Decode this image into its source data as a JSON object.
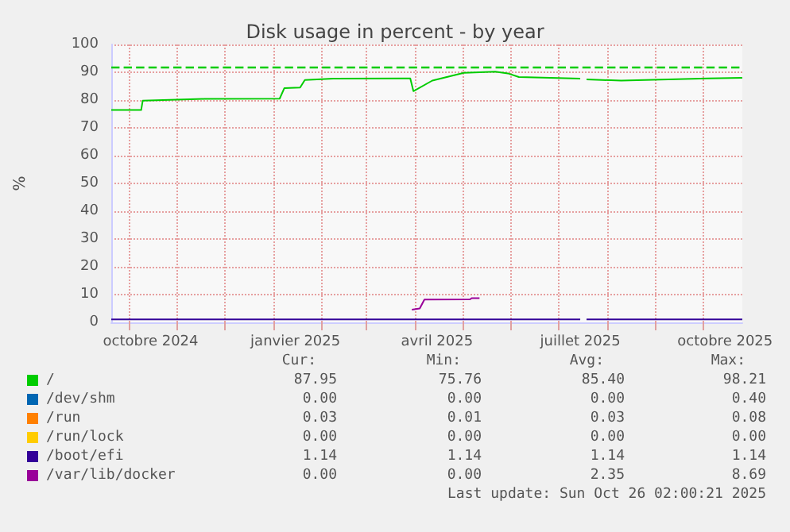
{
  "chart_data": {
    "type": "line",
    "title": "Disk usage in percent - by year",
    "ylabel": "%",
    "xlim": [
      "2024-09-20",
      "2025-10-26"
    ],
    "xticks": [
      {
        "value": "2024-10-01",
        "label": null
      },
      {
        "value": "2024-10-15",
        "label": "octobre 2024"
      },
      {
        "value": "2024-11-01",
        "label": null
      },
      {
        "value": "2024-12-01",
        "label": null
      },
      {
        "value": "2025-01-01",
        "label": null
      },
      {
        "value": "2025-01-15",
        "label": "janvier 2025"
      },
      {
        "value": "2025-02-01",
        "label": null
      },
      {
        "value": "2025-03-01",
        "label": null
      },
      {
        "value": "2025-04-01",
        "label": null
      },
      {
        "value": "2025-04-15",
        "label": "avril 2025"
      },
      {
        "value": "2025-05-01",
        "label": null
      },
      {
        "value": "2025-06-01",
        "label": null
      },
      {
        "value": "2025-07-01",
        "label": null
      },
      {
        "value": "2025-07-15",
        "label": "juillet 2025"
      },
      {
        "value": "2025-08-01",
        "label": null
      },
      {
        "value": "2025-09-01",
        "label": null
      },
      {
        "value": "2025-10-01",
        "label": null
      },
      {
        "value": "2025-10-15",
        "label": "octobre 2025"
      }
    ],
    "ylim": [
      0,
      100
    ],
    "yticks": [
      0,
      10,
      20,
      30,
      40,
      50,
      60,
      70,
      80,
      90,
      100
    ],
    "grid": true,
    "legend": "bottom",
    "marker": "none",
    "line_style": "solid",
    "ref_lines": [
      {
        "axis": "y",
        "value": 92,
        "label": null,
        "color": "#00cc00",
        "line_style": "dashed"
      }
    ],
    "series": [
      {
        "name": "/",
        "color": "#00cc00",
        "x": [
          "2024-09-20",
          "2024-10-09",
          "2024-10-10",
          "2024-11-18",
          "2025-01-05",
          "2025-01-08",
          "2025-01-18",
          "2025-01-21",
          "2025-02-08",
          "2025-03-29",
          "2025-03-31",
          "2025-04-12",
          "2025-05-02",
          "2025-05-22",
          "2025-05-30",
          "2025-06-06",
          "2025-06-26",
          "2025-07-15",
          "2025-07-16",
          "2025-07-19",
          "2025-08-10",
          "2025-09-09",
          "2025-10-04",
          "2025-10-26"
        ],
        "values": [
          76.4,
          76.4,
          79.8,
          80.4,
          80.5,
          84.3,
          84.5,
          87.2,
          87.7,
          87.8,
          83.2,
          87.0,
          89.8,
          90.2,
          89.6,
          88.3,
          88.0,
          87.7,
          null,
          87.4,
          87.0,
          87.4,
          87.8,
          88.0
        ]
      },
      {
        "name": "/dev/shm",
        "color": "#0066b3"
      },
      {
        "name": "/run",
        "color": "#ff8000"
      },
      {
        "name": "/run/lock",
        "color": "#ffcc00"
      },
      {
        "name": "/boot/efi",
        "color": "#330099",
        "x": [
          "2024-09-20",
          "2025-07-15",
          "2025-07-16",
          "2025-07-19",
          "2025-10-26"
        ],
        "values": [
          1.1,
          1.1,
          null,
          1.1,
          1.1
        ]
      },
      {
        "name": "/var/lib/docker",
        "color": "#990099",
        "x": [
          "2025-03-30",
          "2025-04-04",
          "2025-04-07",
          "2025-05-06",
          "2025-05-07",
          "2025-05-12"
        ],
        "values": [
          4.6,
          5.0,
          8.2,
          8.3,
          8.7,
          8.7
        ]
      }
    ],
    "annotations": [
      "Cur:",
      "Min:",
      "Avg:",
      "Max:",
      "87.95",
      "75.76",
      "85.40",
      "98.21",
      "0.00",
      "0.00",
      "0.00",
      "0.40",
      "0.03",
      "0.01",
      "0.03",
      "0.08",
      "0.00",
      "0.00",
      "0.00",
      "0.00",
      "1.14",
      "1.14",
      "1.14",
      "1.14",
      "0.00",
      "0.00",
      "2.35",
      "8.69",
      "Last update: Sun Oct 26 02:00:21 2025"
    ]
  }
}
